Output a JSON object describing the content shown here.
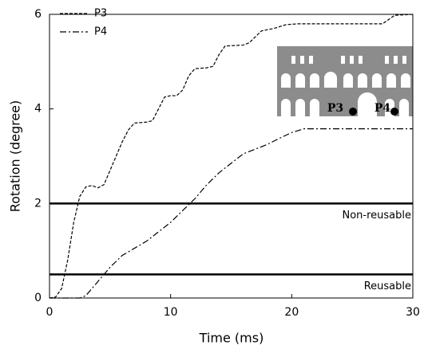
{
  "chart_data": {
    "type": "line",
    "xlabel": "Time (ms)",
    "ylabel": "Rotation (degree)",
    "xlim": [
      0,
      30
    ],
    "xticks": [
      0,
      10,
      20,
      30
    ],
    "ylim": [
      0,
      6
    ],
    "yticks": [
      0,
      2,
      4,
      6
    ],
    "legend": "upper left",
    "series": [
      {
        "name": "P3",
        "color": "#000000",
        "dash": "dashed",
        "x": [
          0,
          0.5,
          1,
          1.5,
          2,
          2.5,
          3,
          3.5,
          4,
          4.5,
          5,
          5.5,
          6,
          6.5,
          7,
          8,
          8.5,
          9,
          9.5,
          10,
          10.5,
          11,
          11.5,
          12,
          13,
          13.5,
          14,
          14.5,
          16,
          16.5,
          17.5,
          18.5,
          19.5,
          20.5,
          24,
          27.5,
          28.5,
          30
        ],
        "values": [
          0,
          0.02,
          0.2,
          0.8,
          1.6,
          2.15,
          2.35,
          2.38,
          2.33,
          2.4,
          2.7,
          3.0,
          3.3,
          3.55,
          3.7,
          3.72,
          3.75,
          4.0,
          4.25,
          4.28,
          4.28,
          4.4,
          4.7,
          4.85,
          4.87,
          4.9,
          5.15,
          5.33,
          5.35,
          5.4,
          5.65,
          5.7,
          5.78,
          5.8,
          5.8,
          5.8,
          5.98,
          6.0
        ]
      },
      {
        "name": "P4",
        "color": "#000000",
        "dash": "dashdot",
        "x": [
          0,
          2.5,
          3,
          3.5,
          4,
          4.5,
          5,
          6,
          7,
          8,
          9,
          10,
          11,
          12,
          13,
          14,
          15,
          16,
          18,
          19,
          20,
          21,
          30
        ],
        "values": [
          0,
          0,
          0.05,
          0.2,
          0.35,
          0.5,
          0.65,
          0.9,
          1.05,
          1.2,
          1.4,
          1.6,
          1.85,
          2.1,
          2.4,
          2.65,
          2.85,
          3.05,
          3.25,
          3.38,
          3.5,
          3.58,
          3.58
        ]
      }
    ],
    "reference_lines": [
      {
        "value": 2,
        "label": "Non-reusable"
      },
      {
        "value": 0.5,
        "label": "Reusable"
      }
    ],
    "inset_labels": [
      "P3",
      "P4"
    ]
  }
}
